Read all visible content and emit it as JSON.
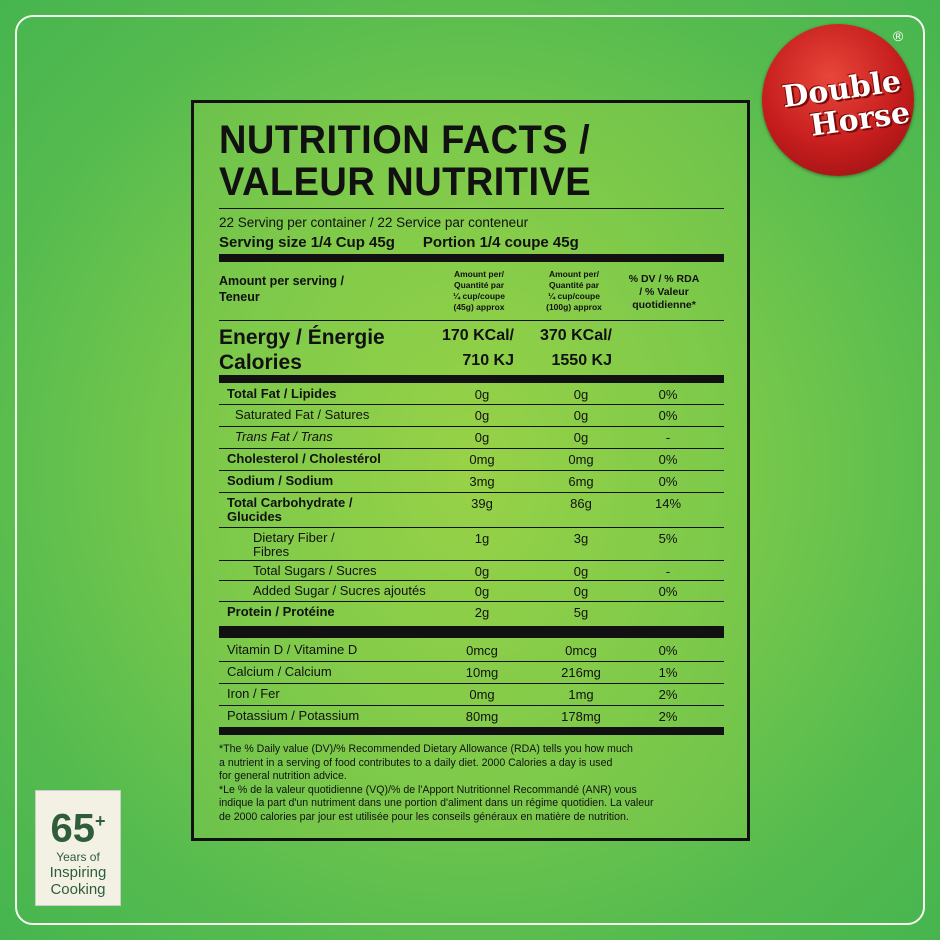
{
  "title": {
    "line1": "NUTRITION FACTS /",
    "line2": "VALEUR NUTRITIVE"
  },
  "servings": "22  Serving per container / 22  Service par conteneur",
  "serving_size": {
    "en": "Serving size 1/4 Cup 45g",
    "fr": "Portion 1/4 coupe 45g"
  },
  "header": {
    "amount": "Amount per serving /",
    "teneur": "Teneur",
    "col1": [
      "Amount per/",
      "Quantité par",
      "¼ cup/coupe",
      "(45g) approx"
    ],
    "col2": [
      "Amount per/",
      "Quantité par",
      "¼ cup/coupe",
      "(100g) approx"
    ],
    "col3": [
      "% DV / % RDA",
      "/ % Valeur",
      "quotidienne*"
    ]
  },
  "energy": {
    "label1": "Energy / Énergie",
    "label2": "Calories",
    "c1a": "170 KCal/",
    "c1b": "710 KJ",
    "c2a": "370 KCal/",
    "c2b": "1550 KJ"
  },
  "rows": [
    {
      "name": "Total Fat / Lipides",
      "v1": "0g",
      "v2": "0g",
      "dv": "0%"
    },
    {
      "name": "Saturated Fat / Satures",
      "v1": "0g",
      "v2": "0g",
      "dv": "0%"
    },
    {
      "name": "Trans Fat / Trans",
      "v1": "0g",
      "v2": "0g",
      "dv": "-"
    },
    {
      "name": "Cholesterol / Cholestérol",
      "v1": "0mg",
      "v2": "0mg",
      "dv": "0%"
    },
    {
      "name": "Sodium  / Sodium",
      "v1": "3mg",
      "v2": "6mg",
      "dv": "0%"
    },
    {
      "name": "Total Carbohydrate / Glucides",
      "v1": "39g",
      "v2": "86g",
      "dv": "14%"
    },
    {
      "name": "Dietary Fiber / Fibres",
      "v1": "1g",
      "v2": "3g",
      "dv": "5%"
    },
    {
      "name": "Total Sugars / Sucres",
      "v1": "0g",
      "v2": "0g",
      "dv": "-"
    },
    {
      "name": "Added Sugar / Sucres ajoutés",
      "v1": "0g",
      "v2": "0g",
      "dv": "0%"
    },
    {
      "name": "Protein / Protéine",
      "v1": "2g",
      "v2": "5g",
      "dv": ""
    },
    {
      "name": "Vitamin D / Vitamine D",
      "v1": "0mcg",
      "v2": "0mcg",
      "dv": "0%"
    },
    {
      "name": "Calcium / Calcium",
      "v1": "10mg",
      "v2": "216mg",
      "dv": "1%"
    },
    {
      "name": "Iron / Fer",
      "v1": "0mg",
      "v2": "1mg",
      "dv": "2%"
    },
    {
      "name": "Potassium / Potassium",
      "v1": "80mg",
      "v2": "178mg",
      "dv": "2%"
    }
  ],
  "footnote": [
    "*The % Daily value (DV)/% Recommended Dietary Allowance (RDA) tells you how much",
    "a nutrient in a serving of food contributes to a daily diet. 2000 Calories a day is used",
    "for general nutrition advice.",
    "*Le % de la valeur quotidienne (VQ)/% de l'Apport Nutritionnel Recommandé (ANR) vous",
    "indique la part d'un nutriment dans une portion d'aliment dans un régime quotidien. La valeur",
    "de 2000 calories par jour est utilisée pour les conseils généraux en matière de nutrition."
  ],
  "brand": {
    "line1": "Double",
    "line2": "Horse",
    "reg": "®"
  },
  "badge": {
    "number": "65",
    "plus": "+",
    "line1": "Years of",
    "line2": "Inspiring",
    "line3": "Cooking"
  },
  "colors": {
    "background": "#7fcb4a",
    "logo_red": "#c51d1d",
    "text": "#111111"
  }
}
